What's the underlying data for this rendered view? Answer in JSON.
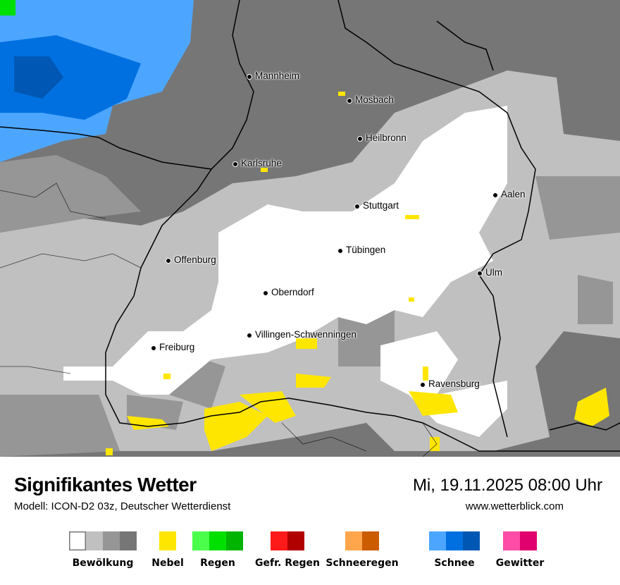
{
  "header": {
    "title": "Signifikantes Wetter",
    "model": "Modell: ICON-D2 03z, Deutscher Wetterdienst",
    "datetime": "Mi, 19.11.2025 08:00 Uhr",
    "website": "www.wetterblick.com"
  },
  "cities": [
    "Mannheim",
    "Mosbach",
    "Heilbronn",
    "Karlsruhe",
    "Stuttgart",
    "Aalen",
    "Tübingen",
    "Offenburg",
    "Ulm",
    "Oberndorf",
    "Villingen-Schwenningen",
    "Freiburg",
    "Ravensburg"
  ],
  "legend": [
    {
      "label": "Bewölkung",
      "colors": [
        "#ffffff",
        "#c0c0c0",
        "#969696",
        "#767676"
      ]
    },
    {
      "label": "Nebel",
      "colors": [
        "#ffe600"
      ]
    },
    {
      "label": "Regen",
      "colors": [
        "#4cfe4c",
        "#00e000",
        "#00b400"
      ]
    },
    {
      "label": "Gefr. Regen",
      "colors": [
        "#ff1a1a",
        "#b00000"
      ]
    },
    {
      "label": "Schneeregen",
      "colors": [
        "#ffa64c",
        "#cc5c00"
      ]
    },
    {
      "label": "Schnee",
      "colors": [
        "#4ca6ff",
        "#0070e0",
        "#0058b4"
      ]
    },
    {
      "label": "Gewitter",
      "colors": [
        "#ff4ca6",
        "#e0006e"
      ]
    }
  ]
}
